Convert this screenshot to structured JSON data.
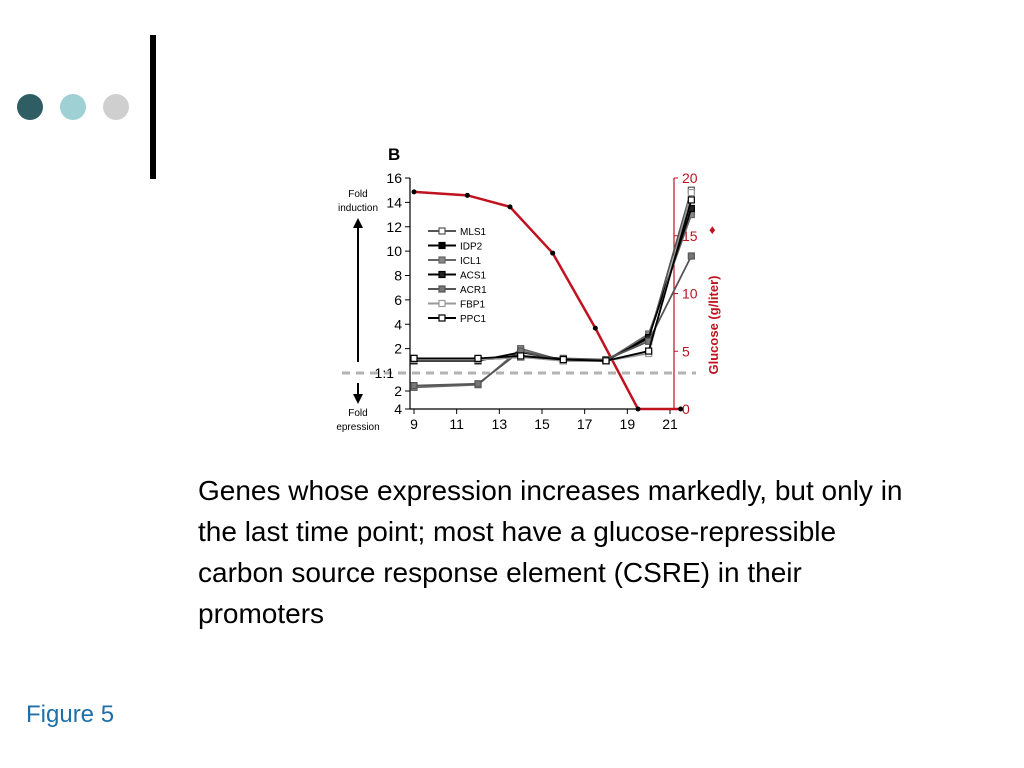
{
  "decor": {
    "dot_colors": [
      "#2e5e63",
      "#9fd0d4",
      "#cfcfcf"
    ]
  },
  "caption": "Genes whose expression increases markedly, but only in the last time point; most have a glucose-repressible carbon source response element (CSRE) in their promoters",
  "figure_label": "Figure 5",
  "chart_data": {
    "type": "line",
    "panel_label": "B",
    "x": [
      9,
      11,
      13,
      15,
      17,
      19,
      21
    ],
    "x_ticks": [
      "9",
      "11",
      "13",
      "15",
      "17",
      "19",
      "21"
    ],
    "xlim": [
      9,
      21
    ],
    "y_left_ticks": [
      "16",
      "14",
      "12",
      "10",
      "8",
      "6",
      "4",
      "2",
      "1:1",
      "2",
      "4"
    ],
    "y_left_labels": {
      "top": "Fold induction",
      "bottom": "Fold epression",
      "baseline": "1:1"
    },
    "y_right_label": "Glucose (g/liter)",
    "y_right_ticks": [
      "20",
      "15",
      "10",
      "5",
      "0"
    ],
    "y_right_lim": [
      0,
      20
    ],
    "colors": {
      "glucose": "#c0121f",
      "baseline": "#b3b3b3",
      "series": "#000000"
    },
    "glucose": {
      "x": [
        9,
        11.5,
        13.5,
        15.5,
        17.5,
        19.5,
        21.5
      ],
      "values": [
        18.8,
        18.5,
        17.5,
        13.5,
        7,
        0,
        0
      ]
    },
    "series": [
      {
        "name": "MLS1",
        "x": [
          9,
          12,
          14,
          16,
          18,
          20,
          22
        ],
        "values": [
          1.2,
          1.1,
          1.4,
          1.2,
          1.1,
          2.8,
          15
        ]
      },
      {
        "name": "IDP2",
        "x": [
          9,
          12,
          14,
          16,
          18,
          20,
          22
        ],
        "values": [
          1.1,
          1.1,
          1.3,
          1.1,
          1.0,
          3.0,
          13.3
        ]
      },
      {
        "name": "ICL1",
        "x": [
          9,
          12,
          14,
          16,
          18,
          20,
          22
        ],
        "values": [
          -1.6,
          -1.3,
          2.0,
          1.0,
          1.0,
          3.2,
          13
        ]
      },
      {
        "name": "ACS1",
        "x": [
          9,
          12,
          14,
          16,
          18,
          20,
          22
        ],
        "values": [
          1.0,
          1.0,
          1.7,
          1.1,
          1.0,
          2.9,
          13.5
        ]
      },
      {
        "name": "ACR1",
        "x": [
          9,
          12,
          14,
          16,
          18,
          20,
          22
        ],
        "values": [
          -1.4,
          -1.2,
          1.8,
          1.0,
          1.1,
          2.6,
          9.6
        ]
      },
      {
        "name": "FBP1",
        "x": [
          9,
          12,
          14,
          16,
          18,
          20,
          22
        ],
        "values": [
          1.1,
          1.1,
          1.3,
          1.0,
          1.0,
          1.6,
          14.8
        ]
      },
      {
        "name": "PPC1",
        "x": [
          9,
          12,
          14,
          16,
          18,
          20,
          22
        ],
        "values": [
          1.2,
          1.2,
          1.4,
          1.1,
          1.0,
          1.8,
          14.2
        ]
      }
    ]
  }
}
